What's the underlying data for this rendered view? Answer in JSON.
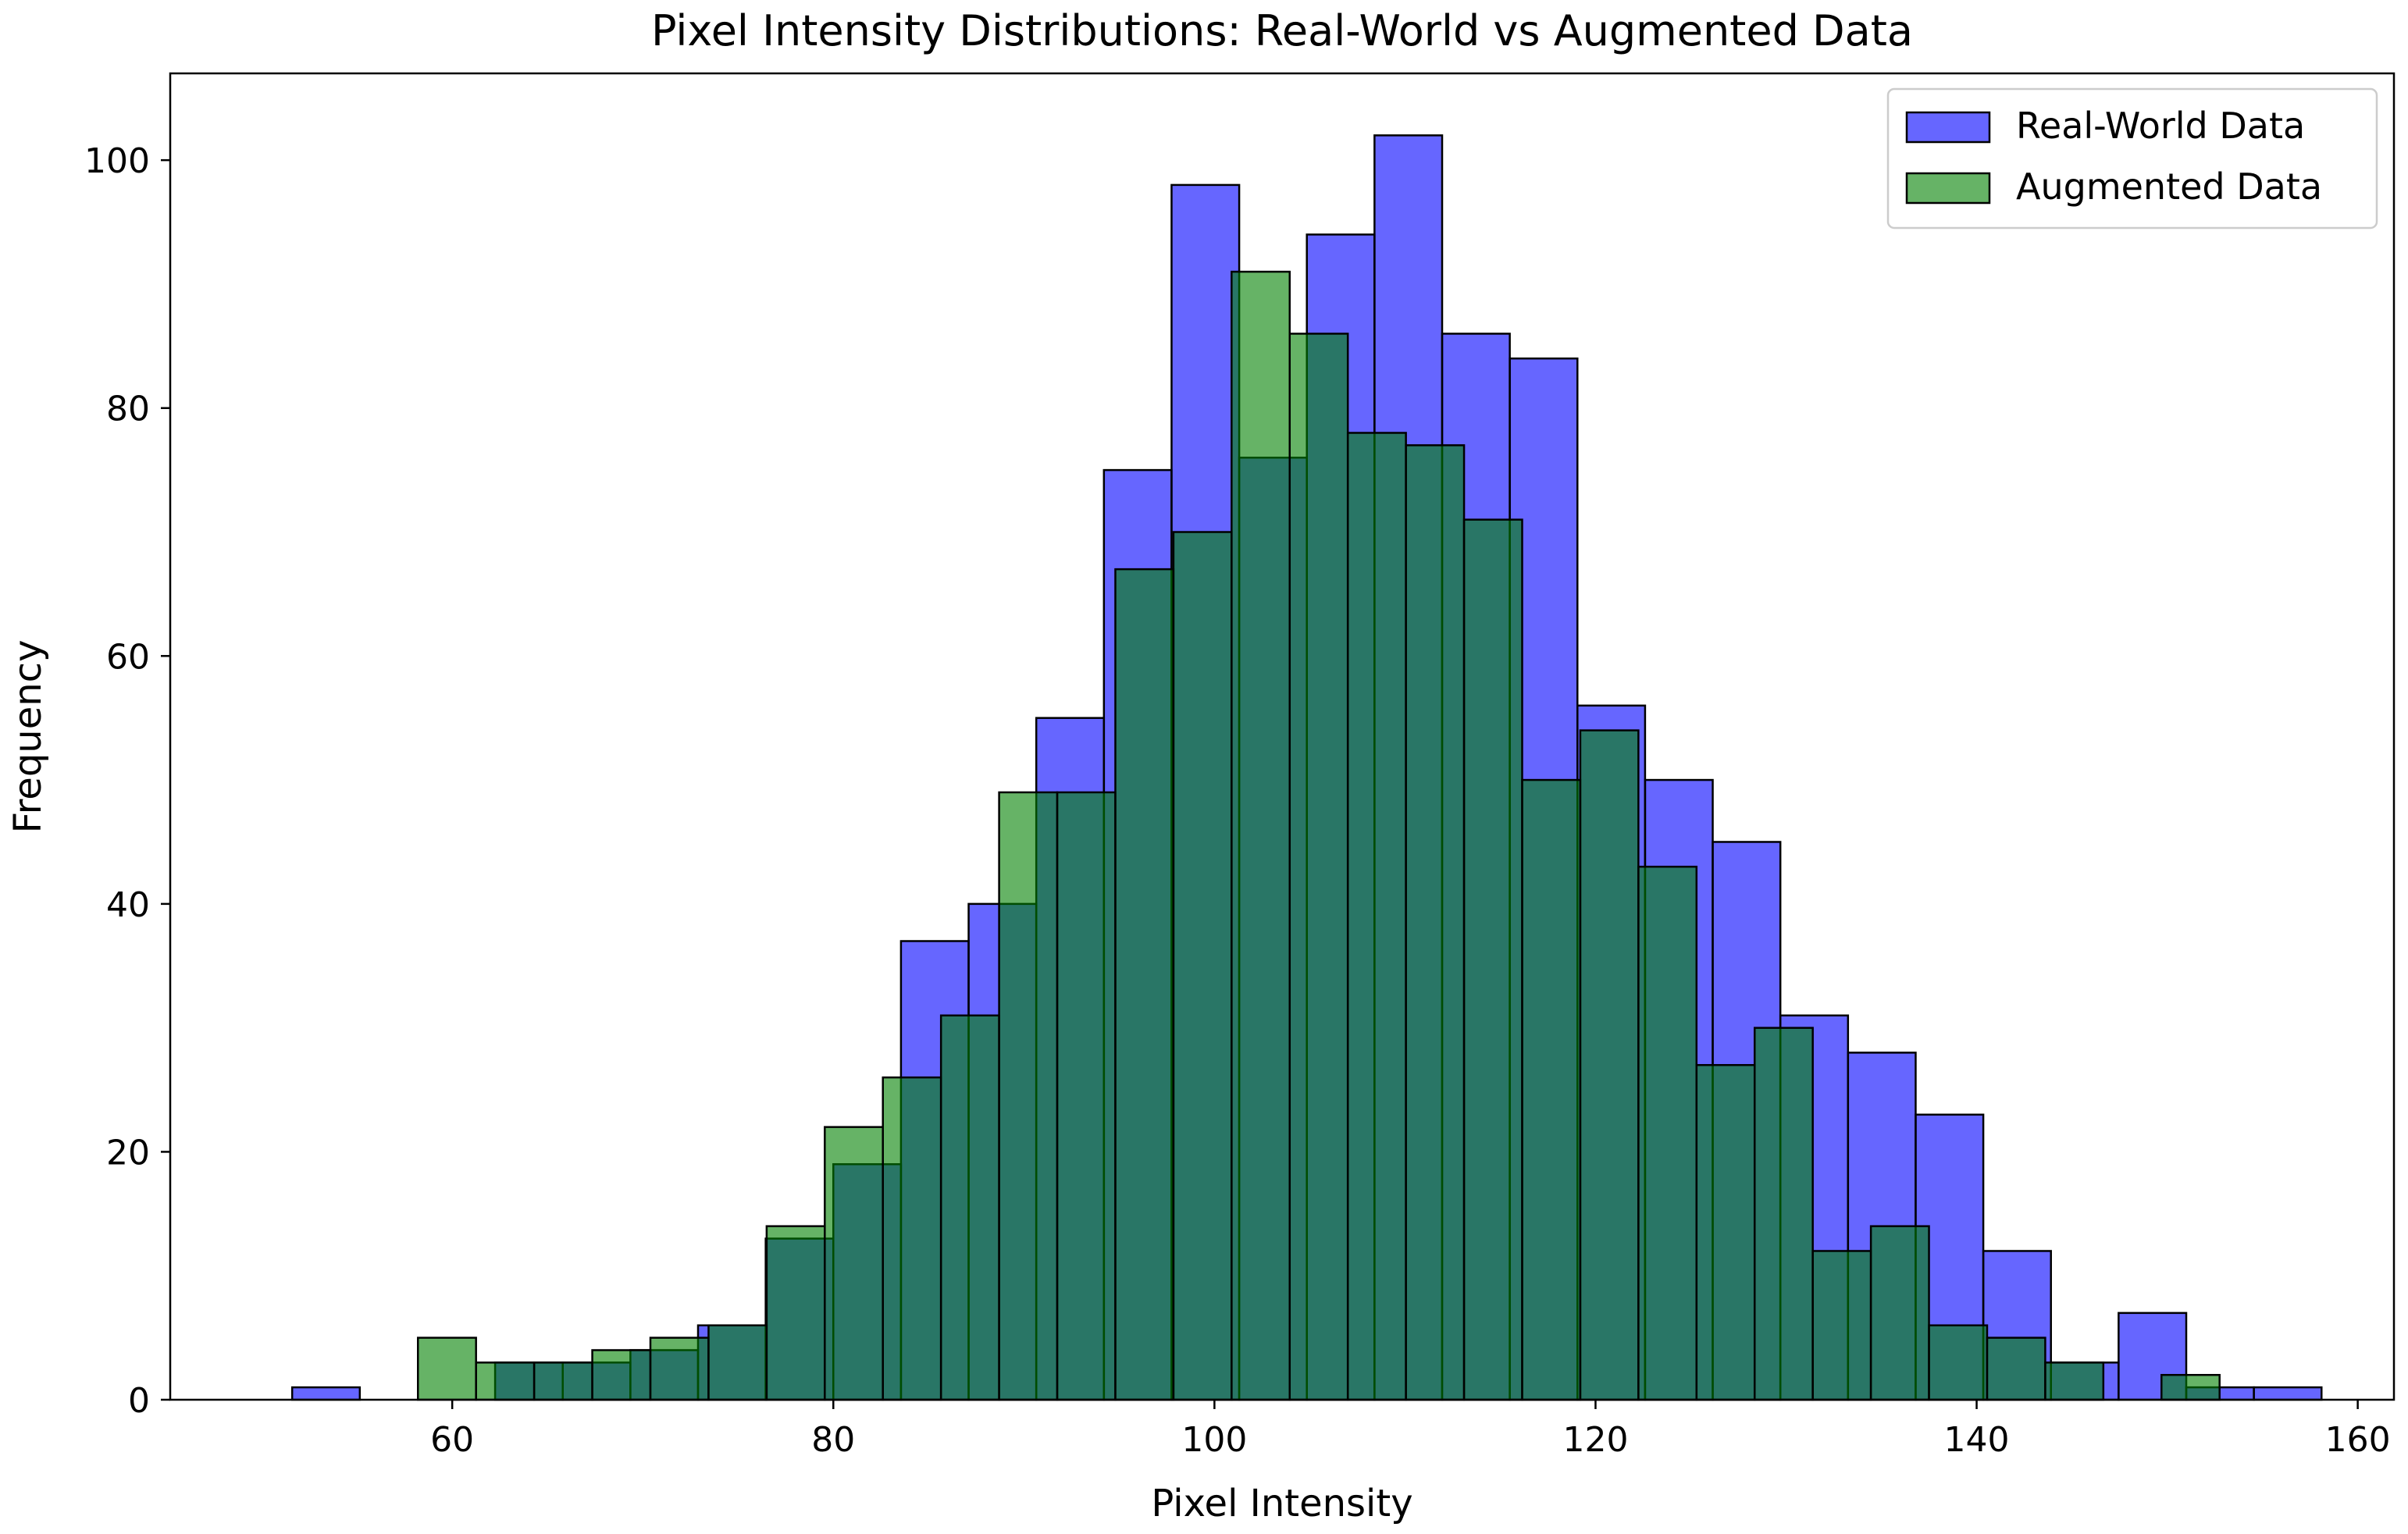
{
  "chart_data": {
    "type": "bar",
    "title": "Pixel Intensity Distributions: Real-World vs Augmented Data",
    "xlabel": "Pixel Intensity",
    "ylabel": "Frequency",
    "xlim": [
      45.2,
      161.9
    ],
    "ylim": [
      0,
      107
    ],
    "xticks": [
      60,
      80,
      100,
      120,
      140,
      160
    ],
    "yticks": [
      0,
      20,
      40,
      60,
      80,
      100
    ],
    "grid": false,
    "legend": "top-right",
    "series": [
      {
        "name": "Real-World Data",
        "color": "#0000ff",
        "bin_start": 51.6,
        "bin_width": 3.55,
        "values": [
          1,
          0,
          0,
          3,
          3,
          4,
          6,
          13,
          19,
          37,
          40,
          55,
          75,
          98,
          76,
          94,
          102,
          86,
          84,
          56,
          50,
          45,
          31,
          28,
          23,
          12,
          3,
          7,
          1,
          1,
          0,
          0,
          1
        ]
      },
      {
        "name": "Augmented Data",
        "color": "#008000",
        "bin_start": 58.2,
        "bin_width": 3.05,
        "values": [
          5,
          3,
          3,
          4,
          5,
          6,
          14,
          22,
          26,
          31,
          49,
          49,
          67,
          70,
          91,
          86,
          78,
          77,
          71,
          50,
          54,
          43,
          27,
          30,
          12,
          14,
          6,
          5,
          3,
          0,
          2
        ]
      }
    ]
  }
}
